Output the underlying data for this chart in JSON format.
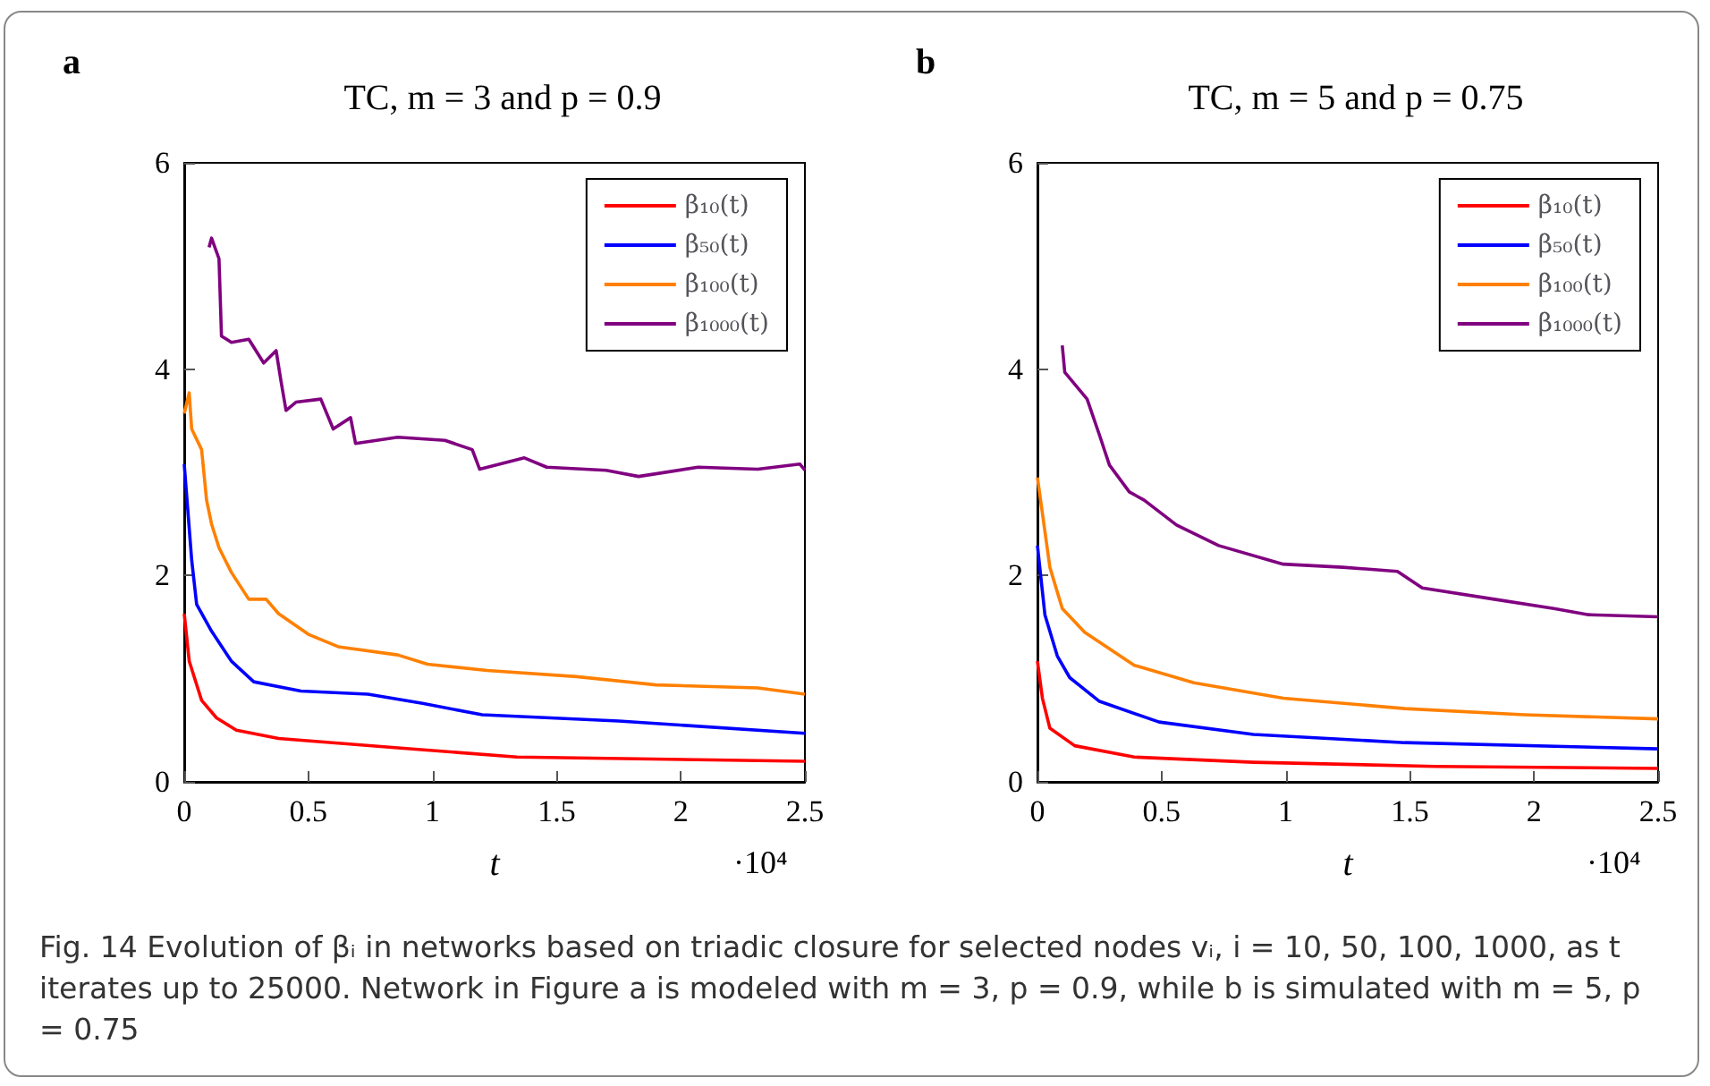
{
  "chart_data": [
    {
      "type": "line",
      "title": "TC, m = 3 and p = 0.9",
      "xlabel": "t",
      "xlim": [
        0,
        2.5
      ],
      "xticks": [
        0,
        0.5,
        1,
        1.5,
        2,
        2.5
      ],
      "ylim": [
        0,
        6
      ],
      "yticks": [
        0,
        2,
        4,
        6
      ],
      "legend": "top right",
      "marker": "none",
      "line_style": "solid",
      "annotations": [
        "a",
        "·10⁴",
        "Fig. 14  Evolution of βᵢ in networks based on triadic closure for selected nodes vᵢ, i = 10, 50, 100, 1000, as t iterates up to 25000. Network in Figure a is modeled with m = 3, p = 0.9, while b is simulated with m = 5, p = 0.75"
      ],
      "series": [
        {
          "name": "β₁₀(t)",
          "color": "#ff0000",
          "x": [
            0,
            0.02,
            0.07,
            0.13,
            0.21,
            0.38,
            0.86,
            1.34,
            2.5
          ],
          "values": [
            1.63,
            1.17,
            0.79,
            0.62,
            0.5,
            0.42,
            0.33,
            0.24,
            0.2
          ]
        },
        {
          "name": "β₅₀(t)",
          "color": "#0000ff",
          "x": [
            0,
            0.03,
            0.05,
            0.11,
            0.19,
            0.28,
            0.47,
            0.74,
            0.96,
            1.2,
            1.75,
            2.5
          ],
          "values": [
            3.08,
            2.15,
            1.72,
            1.46,
            1.17,
            0.97,
            0.88,
            0.85,
            0.76,
            0.65,
            0.59,
            0.47
          ]
        },
        {
          "name": "β₁₀₀(t)",
          "color": "#ff8000",
          "x": [
            0,
            0.02,
            0.03,
            0.07,
            0.09,
            0.11,
            0.14,
            0.19,
            0.26,
            0.33,
            0.38,
            0.5,
            0.62,
            0.86,
            0.98,
            1.22,
            1.58,
            1.9,
            2.31,
            2.5
          ],
          "values": [
            3.57,
            3.77,
            3.42,
            3.22,
            2.73,
            2.5,
            2.27,
            2.03,
            1.77,
            1.77,
            1.63,
            1.43,
            1.31,
            1.23,
            1.14,
            1.08,
            1.02,
            0.94,
            0.91,
            0.85
          ]
        },
        {
          "name": "β₁₀₀₀(t)",
          "color": "#800080",
          "x": [
            0.1,
            0.11,
            0.14,
            0.15,
            0.19,
            0.26,
            0.32,
            0.37,
            0.39,
            0.41,
            0.45,
            0.55,
            0.6,
            0.67,
            0.69,
            0.86,
            1.05,
            1.16,
            1.19,
            1.37,
            1.46,
            1.7,
            1.83,
            2.07,
            2.31,
            2.48,
            2.5
          ],
          "values": [
            5.18,
            5.27,
            5.07,
            4.32,
            4.26,
            4.29,
            4.06,
            4.18,
            3.88,
            3.6,
            3.68,
            3.71,
            3.42,
            3.53,
            3.28,
            3.34,
            3.31,
            3.22,
            3.03,
            3.14,
            3.05,
            3.02,
            2.96,
            3.05,
            3.03,
            3.08,
            3.02
          ]
        }
      ]
    },
    {
      "type": "line",
      "title": "TC, m = 5 and p = 0.75",
      "xlabel": "t",
      "xlim": [
        0,
        2.5
      ],
      "xticks": [
        0,
        0.5,
        1,
        1.5,
        2,
        2.5
      ],
      "ylim": [
        0,
        6
      ],
      "yticks": [
        0,
        2,
        4,
        6
      ],
      "legend": "top right",
      "marker": "none",
      "line_style": "solid",
      "annotations": [
        "b",
        "·10⁴"
      ],
      "series": [
        {
          "name": "β₁₀(t)",
          "color": "#ff0000",
          "x": [
            0,
            0.02,
            0.05,
            0.15,
            0.39,
            0.87,
            1.6,
            2.5
          ],
          "values": [
            1.17,
            0.81,
            0.52,
            0.35,
            0.24,
            0.19,
            0.15,
            0.13
          ]
        },
        {
          "name": "β₅₀(t)",
          "color": "#0000ff",
          "x": [
            0,
            0.03,
            0.08,
            0.13,
            0.25,
            0.49,
            0.87,
            1.48,
            2.5
          ],
          "values": [
            2.29,
            1.62,
            1.22,
            1.01,
            0.78,
            0.58,
            0.46,
            0.38,
            0.32
          ]
        },
        {
          "name": "β₁₀₀(t)",
          "color": "#ff8000",
          "x": [
            0,
            0.05,
            0.1,
            0.19,
            0.39,
            0.63,
            0.99,
            1.48,
            1.96,
            2.5
          ],
          "values": [
            2.95,
            2.08,
            1.68,
            1.45,
            1.13,
            0.96,
            0.81,
            0.71,
            0.65,
            0.61
          ]
        },
        {
          "name": "β₁₀₀₀(t)",
          "color": "#800080",
          "x": [
            0.1,
            0.11,
            0.2,
            0.25,
            0.29,
            0.37,
            0.43,
            0.56,
            0.73,
            0.99,
            1.23,
            1.45,
            1.55,
            1.84,
            2.08,
            2.22,
            2.5
          ],
          "values": [
            4.23,
            3.97,
            3.71,
            3.36,
            3.07,
            2.81,
            2.73,
            2.49,
            2.29,
            2.11,
            2.08,
            2.04,
            1.88,
            1.77,
            1.68,
            1.62,
            1.6
          ]
        }
      ]
    }
  ]
}
